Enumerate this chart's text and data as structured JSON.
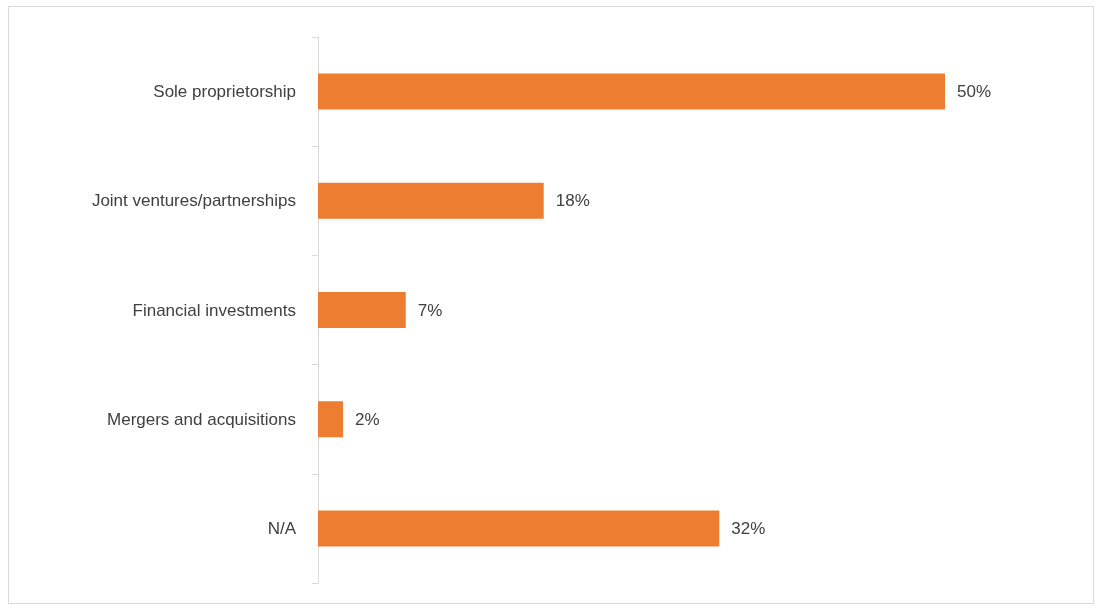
{
  "chart_data": {
    "type": "bar",
    "orientation": "horizontal",
    "categories": [
      "Sole proprietorship",
      "Joint ventures/partnerships",
      "Financial investments",
      "Mergers and acquisitions",
      "N/A"
    ],
    "values": [
      50,
      18,
      7,
      2,
      32
    ],
    "value_labels": [
      "50%",
      "18%",
      "7%",
      "2%",
      "32%"
    ],
    "color": "#ed7d31"
  }
}
